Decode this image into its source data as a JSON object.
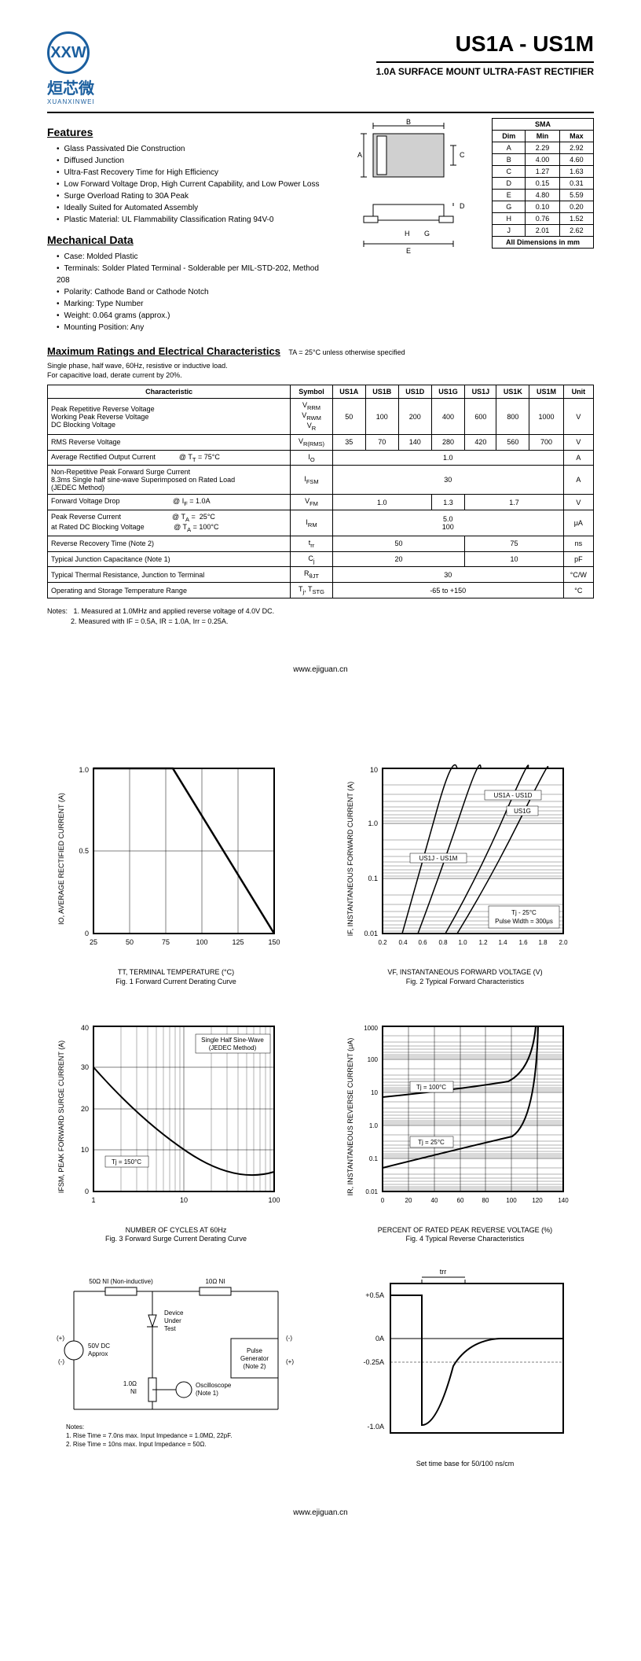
{
  "header": {
    "logo_initials": "XXW",
    "logo_cn": "烜芯微",
    "logo_en": "XUANXINWEI",
    "title": "US1A - US1M",
    "subtitle": "1.0A SURFACE MOUNT ULTRA-FAST RECTIFIER"
  },
  "features": {
    "title": "Features",
    "items": [
      "Glass Passivated Die Construction",
      "Diffused Junction",
      "Ultra-Fast Recovery Time for High Efficiency",
      "Low Forward Voltage Drop, High Current Capability, and Low Power Loss",
      "Surge Overload Rating to 30A Peak",
      "Ideally Suited for Automated Assembly",
      "Plastic Material: UL Flammability Classification Rating 94V-0"
    ]
  },
  "mechanical": {
    "title": "Mechanical Data",
    "items": [
      "Case: Molded Plastic",
      "Terminals: Solder Plated Terminal - Solderable per MIL-STD-202, Method 208",
      "Polarity: Cathode Band or Cathode Notch",
      "Marking: Type Number",
      "Weight: 0.064 grams (approx.)",
      "Mounting Position: Any"
    ]
  },
  "dimensions": {
    "header": "SMA",
    "cols": [
      "Dim",
      "Min",
      "Max"
    ],
    "rows": [
      [
        "A",
        "2.29",
        "2.92"
      ],
      [
        "B",
        "4.00",
        "4.60"
      ],
      [
        "C",
        "1.27",
        "1.63"
      ],
      [
        "D",
        "0.15",
        "0.31"
      ],
      [
        "E",
        "4.80",
        "5.59"
      ],
      [
        "G",
        "0.10",
        "0.20"
      ],
      [
        "H",
        "0.76",
        "1.52"
      ],
      [
        "J",
        "2.01",
        "2.62"
      ]
    ],
    "footer": "All Dimensions in mm"
  },
  "max_ratings": {
    "title": "Maximum Ratings and Electrical Characteristics",
    "condition": "TA = 25°C unless otherwise specified",
    "notes": [
      "Single phase, half wave, 60Hz, resistive or inductive load.",
      "For capacitive load, derate current by 20%."
    ],
    "cols": [
      "Characteristic",
      "Symbol",
      "US1A",
      "US1B",
      "US1D",
      "US1G",
      "US1J",
      "US1K",
      "US1M",
      "Unit"
    ]
  },
  "footnotes": {
    "prefix": "Notes:",
    "items": [
      "1.  Measured at 1.0MHz and applied reverse voltage of 4.0V DC.",
      "2.  Measured with IF = 0.5A, IR = 1.0A, Irr = 0.25A."
    ]
  },
  "footer_url": "www.ejiguan.cn",
  "charts": {
    "fig1": {
      "ylabel": "IO, AVERAGE RECTIFIED CURRENT (A)",
      "xlabel": "TT, TERMINAL TEMPERATURE (°C)",
      "caption": "Fig. 1  Forward Current Derating Curve",
      "xticks": [
        "25",
        "50",
        "75",
        "100",
        "125",
        "150"
      ],
      "yticks": [
        "0",
        "0.5",
        "1.0"
      ],
      "line": [
        [
          25,
          1.0
        ],
        [
          80,
          1.0
        ],
        [
          150,
          0
        ]
      ]
    },
    "fig2": {
      "ylabel": "IF, INSTANTANEOUS FORWARD CURRENT (A)",
      "xlabel": "VF, INSTANTANEOUS FORWARD VOLTAGE (V)",
      "caption": "Fig. 2  Typical Forward Characteristics",
      "xticks": [
        "0.2",
        "0.4",
        "0.6",
        "0.8",
        "1.0",
        "1.2",
        "1.4",
        "1.6",
        "1.8",
        "2.0"
      ],
      "yticks": [
        "0.01",
        "0.1",
        "1.0",
        "10"
      ],
      "labels": [
        "US1A - US1D",
        "US1G",
        "US1J - US1M"
      ],
      "note1": "Tj - 25°C",
      "note2": "Pulse Width = 300μs"
    },
    "fig3": {
      "ylabel": "IFSM, PEAK FORWARD SURGE CURRENT (A)",
      "xlabel": "NUMBER OF CYCLES AT 60Hz",
      "caption": "Fig. 3  Forward Surge Current Derating Curve",
      "xticks": [
        "1",
        "10",
        "100"
      ],
      "yticks": [
        "0",
        "10",
        "20",
        "30",
        "40"
      ],
      "note": "Single Half Sine-Wave\n(JEDEC Method)",
      "tj": "Tj = 150°C"
    },
    "fig4": {
      "ylabel": "IR, INSTANTANEOUS REVERSE CURRENT (μA)",
      "xlabel": "PERCENT OF RATED PEAK REVERSE VOLTAGE (%)",
      "caption": "Fig. 4  Typical Reverse Characteristics",
      "xticks": [
        "0",
        "20",
        "40",
        "60",
        "80",
        "100",
        "120",
        "140"
      ],
      "yticks": [
        "0.01",
        "0.1",
        "1.0",
        "10",
        "100",
        "1000"
      ],
      "t1": "Tj = 100°C",
      "t2": "Tj = 25°C"
    },
    "fig5": {
      "labels": {
        "r1": "50Ω NI (Non-inductive)",
        "r2": "10Ω NI",
        "dut": "Device\nUnder\nTest",
        "src": "50V DC\nApprox",
        "r3": "1.0Ω\nNI",
        "osc": "Oscilloscope\n(Note 1)",
        "pg": "Pulse\nGenerator\n(Note 2)"
      },
      "notes": "Notes:\n1. Rise Time = 7.0ns max. Input Impedance = 1.0MΩ, 22pF.\n2. Rise Time = 10ns max. Input Impedance = 50Ω."
    },
    "fig6": {
      "yticks": [
        "+0.5A",
        "0A",
        "-0.25A",
        "-1.0A"
      ],
      "caption": "Set time base for 50/100 ns/cm",
      "trr": "trr"
    }
  }
}
